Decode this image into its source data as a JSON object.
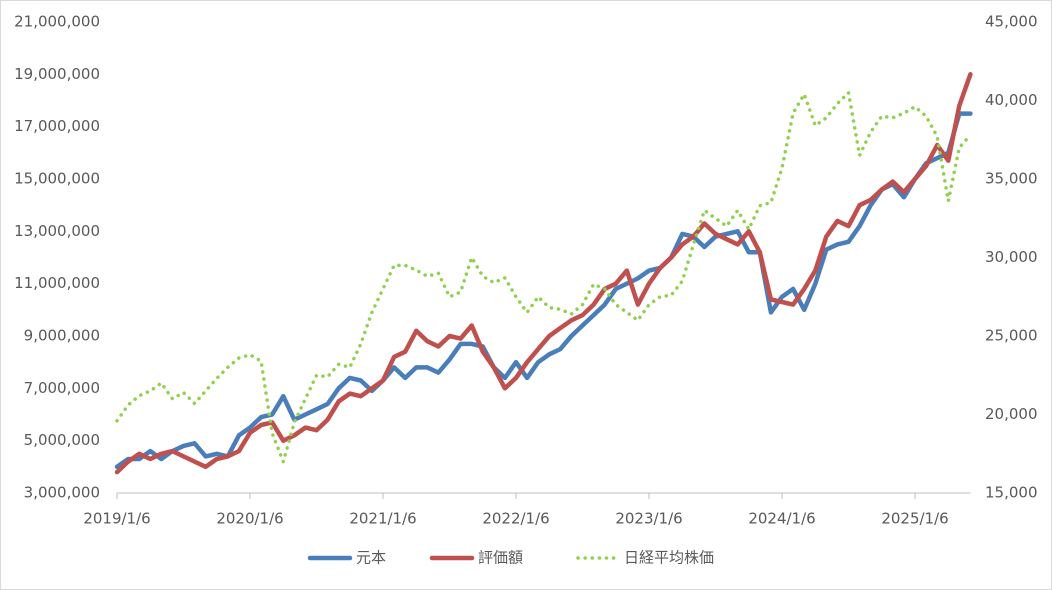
{
  "chart_data": {
    "type": "line",
    "categories": [
      "2019/1/6",
      null,
      null,
      null,
      null,
      null,
      null,
      null,
      null,
      null,
      null,
      null,
      "2020/1/6",
      null,
      null,
      null,
      null,
      null,
      null,
      null,
      null,
      null,
      null,
      null,
      "2021/1/6",
      null,
      null,
      null,
      null,
      null,
      null,
      null,
      null,
      null,
      null,
      null,
      "2022/1/6",
      null,
      null,
      null,
      null,
      null,
      null,
      null,
      null,
      null,
      null,
      null,
      "2023/1/6",
      null,
      null,
      null,
      null,
      null,
      null,
      null,
      null,
      null,
      null,
      null,
      "2024/1/6",
      null,
      null,
      null,
      null,
      null,
      null,
      null,
      null,
      null,
      null,
      null,
      "2025/1/6",
      null,
      null,
      null,
      null,
      null
    ],
    "series": [
      {
        "name": "元本",
        "color": "#4a7ebb",
        "style": "solid",
        "axis": "y",
        "values": [
          4.0,
          4.3,
          4.3,
          4.6,
          4.3,
          4.6,
          4.8,
          4.9,
          4.4,
          4.5,
          4.4,
          5.2,
          5.5,
          5.9,
          6.0,
          6.7,
          5.8,
          6.0,
          6.2,
          6.4,
          7.0,
          7.4,
          7.3,
          6.9,
          7.3,
          7.8,
          7.4,
          7.8,
          7.8,
          7.6,
          8.1,
          8.7,
          8.7,
          8.6,
          7.8,
          7.4,
          8.0,
          7.4,
          8.0,
          8.3,
          8.5,
          9.0,
          9.4,
          9.8,
          10.2,
          10.8,
          11.0,
          11.2,
          11.5,
          11.6,
          12.0,
          12.9,
          12.8,
          12.4,
          12.8,
          12.9,
          13.0,
          12.2,
          12.2,
          9.9,
          10.5,
          10.8,
          10.0,
          11.0,
          12.3,
          12.5,
          12.6,
          13.2,
          14.0,
          14.6,
          14.8,
          14.3,
          15.0,
          15.6,
          15.8,
          16.0,
          17.5,
          17.5
        ]
      },
      {
        "name": "評価額",
        "color": "#c0504d",
        "style": "solid",
        "axis": "y",
        "values": [
          3.8,
          4.2,
          4.5,
          4.3,
          4.5,
          4.6,
          4.4,
          4.2,
          4.0,
          4.3,
          4.4,
          4.6,
          5.3,
          5.6,
          5.7,
          5.0,
          5.2,
          5.5,
          5.4,
          5.8,
          6.5,
          6.8,
          6.7,
          7.0,
          7.3,
          8.2,
          8.4,
          9.2,
          8.8,
          8.6,
          9.0,
          8.9,
          9.4,
          8.4,
          7.8,
          7.0,
          7.4,
          8.0,
          8.5,
          9.0,
          9.3,
          9.6,
          9.8,
          10.2,
          10.8,
          11.0,
          11.5,
          10.2,
          11.0,
          11.6,
          12.0,
          12.5,
          12.8,
          13.3,
          12.9,
          12.7,
          12.5,
          13.0,
          12.2,
          10.4,
          10.3,
          10.2,
          10.8,
          11.5,
          12.8,
          13.4,
          13.2,
          14.0,
          14.2,
          14.6,
          14.9,
          14.5,
          15.0,
          15.5,
          16.3,
          15.7,
          17.8,
          19.0
        ]
      },
      {
        "name": "日経平均株価",
        "color": "#92d050",
        "style": "dotted",
        "axis": "y2",
        "values": [
          19600,
          20600,
          21200,
          21500,
          22000,
          21000,
          21400,
          20700,
          21500,
          22300,
          23000,
          23600,
          23800,
          23400,
          18800,
          17000,
          19500,
          21000,
          22500,
          22400,
          23200,
          23000,
          24500,
          26500,
          28000,
          29500,
          29500,
          29200,
          28800,
          29000,
          27500,
          27800,
          30000,
          28800,
          28400,
          28700,
          27500,
          26500,
          27500,
          26800,
          26700,
          26400,
          27000,
          28300,
          28000,
          27000,
          26500,
          26000,
          27000,
          27500,
          27600,
          28500,
          30800,
          33000,
          32500,
          32000,
          33000,
          31800,
          33300,
          33500,
          35700,
          39200,
          40400,
          38400,
          38900,
          39800,
          40500,
          36500,
          38000,
          39000,
          38900,
          39200,
          39600,
          39000,
          37700,
          33600,
          37000,
          37800
        ]
      }
    ],
    "ylim": [
      3000000,
      21000000
    ],
    "yunit": 1000000,
    "yticks": [
      {
        "value": 3000000,
        "label": "3,000,000"
      },
      {
        "value": 5000000,
        "label": "5,000,000"
      },
      {
        "value": 7000000,
        "label": "7,000,000"
      },
      {
        "value": 9000000,
        "label": "9,000,000"
      },
      {
        "value": 11000000,
        "label": "11,000,000"
      },
      {
        "value": 13000000,
        "label": "13,000,000"
      },
      {
        "value": 15000000,
        "label": "15,000,000"
      },
      {
        "value": 17000000,
        "label": "17,000,000"
      },
      {
        "value": 19000000,
        "label": "19,000,000"
      },
      {
        "value": 21000000,
        "label": "21,000,000"
      }
    ],
    "y2lim": [
      15000,
      45000
    ],
    "y2ticks": [
      {
        "value": 15000,
        "label": "15,000"
      },
      {
        "value": 20000,
        "label": "20,000"
      },
      {
        "value": 25000,
        "label": "25,000"
      },
      {
        "value": 30000,
        "label": "30,000"
      },
      {
        "value": 35000,
        "label": "35,000"
      },
      {
        "value": 40000,
        "label": "40,000"
      },
      {
        "value": 45000,
        "label": "45,000"
      }
    ],
    "grid": false,
    "legend": "bottom"
  }
}
